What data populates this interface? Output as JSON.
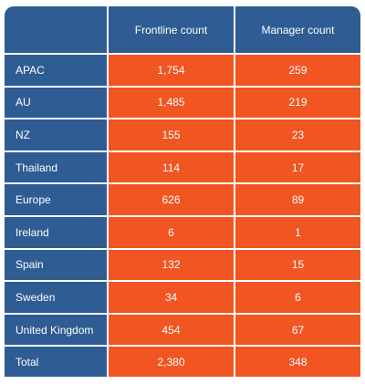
{
  "table": {
    "header": [
      "Frontline count",
      "Manager count"
    ],
    "rows": [
      [
        "APAC",
        "1,754",
        "259"
      ],
      [
        "AU",
        "1,485",
        "219"
      ],
      [
        "NZ",
        "155",
        "23"
      ],
      [
        "Thailand",
        "114",
        "17"
      ],
      [
        "Europe",
        "626",
        "89"
      ],
      [
        "Ireland",
        "6",
        "1"
      ],
      [
        "Spain",
        "132",
        "15"
      ],
      [
        "Sweden",
        "34",
        "6"
      ],
      [
        "United Kingdom",
        "454",
        "67"
      ],
      [
        "Total",
        "2,380",
        "348"
      ]
    ]
  }
}
